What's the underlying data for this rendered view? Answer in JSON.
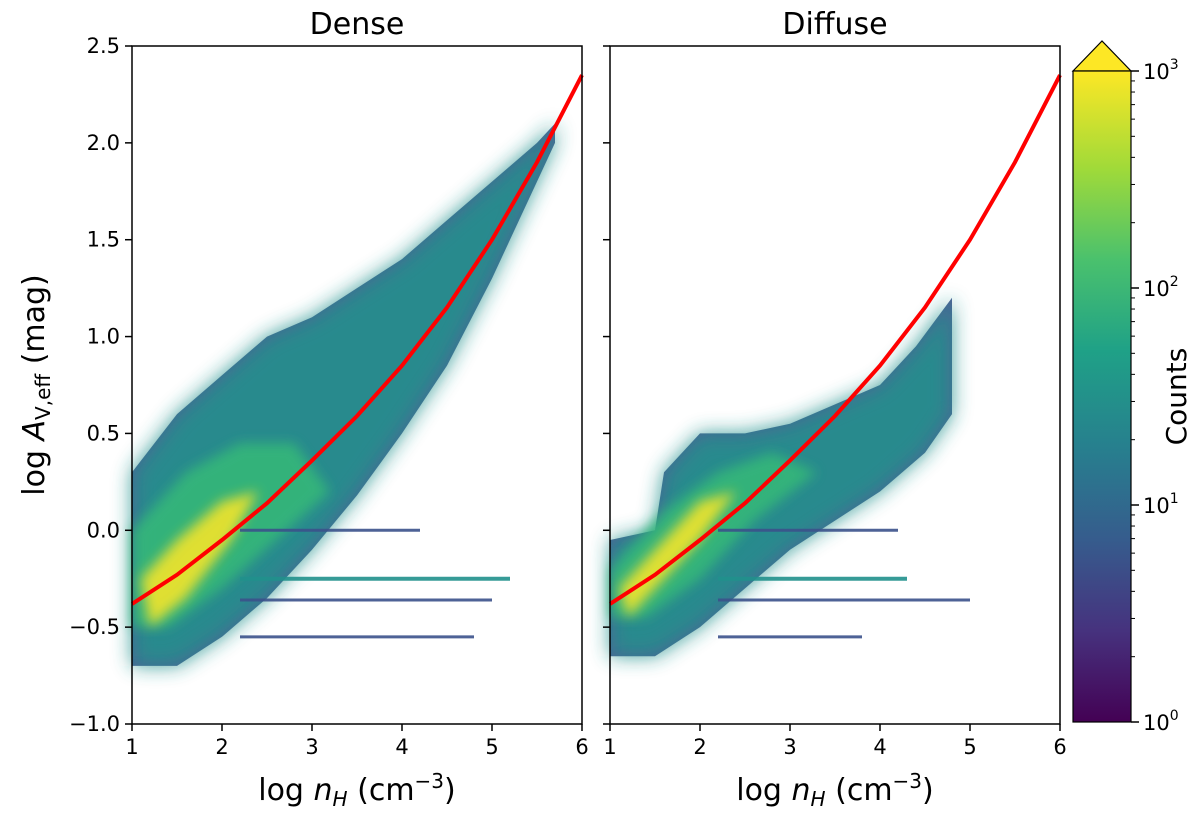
{
  "chart_data": {
    "type": "heatmap",
    "shared": {
      "xlabel_prefix": "log",
      "xlabel_var": "n",
      "xlabel_sub": "H",
      "xlabel_unit_open": " (cm",
      "xlabel_unit_exp": "−3",
      "xlabel_unit_close": ")",
      "ylabel_prefix": "log",
      "ylabel_var": "A",
      "ylabel_sub": "V,eff",
      "ylabel_unit": " (mag)",
      "xlim": [
        1,
        6
      ],
      "ylim": [
        -1.0,
        2.5
      ],
      "xticks": [
        1,
        2,
        3,
        4,
        5,
        6
      ],
      "xtick_labels": [
        "1",
        "2",
        "3",
        "4",
        "5",
        "6"
      ],
      "yticks": [
        -1.0,
        -0.5,
        0.0,
        0.5,
        1.0,
        1.5,
        2.0,
        2.5
      ],
      "ytick_labels": [
        "−1.0",
        "−0.5",
        "0.0",
        "0.5",
        "1.0",
        "1.5",
        "2.0",
        "2.5"
      ],
      "fit_curve": {
        "color": "#ff0000",
        "x": [
          1.0,
          1.5,
          2.0,
          2.5,
          3.0,
          3.5,
          4.0,
          4.5,
          5.0,
          5.5,
          6.0
        ],
        "y": [
          -0.38,
          -0.23,
          -0.05,
          0.14,
          0.36,
          0.59,
          0.85,
          1.15,
          1.5,
          1.9,
          2.35
        ]
      }
    },
    "panels": [
      {
        "title": "Dense",
        "upper_x": [
          1.0,
          1.5,
          2.0,
          2.5,
          3.0,
          3.5,
          4.0,
          4.5,
          5.0,
          5.5,
          5.7
        ],
        "upper_y": [
          0.3,
          0.6,
          0.8,
          1.0,
          1.1,
          1.25,
          1.4,
          1.6,
          1.8,
          2.0,
          2.1
        ],
        "lower_x": [
          5.7,
          5.5,
          5.0,
          4.5,
          4.0,
          3.5,
          3.0,
          2.5,
          2.0,
          1.5,
          1.0
        ],
        "lower_y": [
          2.0,
          1.8,
          1.3,
          0.85,
          0.5,
          0.18,
          -0.1,
          -0.35,
          -0.55,
          -0.7,
          -0.7
        ],
        "core_x": [
          1.0,
          1.6,
          2.2,
          2.8,
          3.2,
          2.6,
          2.0,
          1.4,
          1.0
        ],
        "core_y": [
          0.0,
          0.3,
          0.45,
          0.45,
          0.2,
          -0.05,
          -0.3,
          -0.5,
          -0.5
        ],
        "hot_x": [
          1.1,
          1.5,
          2.0,
          2.4,
          2.1,
          1.6,
          1.2
        ],
        "hot_y": [
          -0.25,
          -0.05,
          0.15,
          0.2,
          -0.05,
          -0.35,
          -0.5
        ],
        "streak_x_end": [
          4.2,
          5.2,
          5.0,
          4.8
        ],
        "streak_y": [
          0.0,
          -0.25,
          -0.36,
          -0.55
        ]
      },
      {
        "title": "Diffuse",
        "upper_x": [
          1.0,
          1.5,
          1.6,
          2.0,
          2.5,
          3.0,
          3.5,
          4.0,
          4.4,
          4.8
        ],
        "upper_y": [
          -0.05,
          0.0,
          0.3,
          0.5,
          0.5,
          0.55,
          0.65,
          0.75,
          0.95,
          1.2
        ],
        "lower_x": [
          4.8,
          4.5,
          4.0,
          3.5,
          3.0,
          2.5,
          2.0,
          1.5,
          1.0
        ],
        "lower_y": [
          0.6,
          0.4,
          0.2,
          0.05,
          -0.1,
          -0.3,
          -0.5,
          -0.65,
          -0.65
        ],
        "core_x": [
          1.0,
          1.6,
          2.2,
          2.8,
          3.3,
          2.6,
          2.0,
          1.4,
          1.0
        ],
        "core_y": [
          -0.2,
          0.1,
          0.3,
          0.4,
          0.3,
          0.05,
          -0.25,
          -0.45,
          -0.45
        ],
        "hot_x": [
          1.1,
          1.6,
          2.0,
          2.4,
          2.0,
          1.5,
          1.2
        ],
        "hot_y": [
          -0.3,
          -0.05,
          0.15,
          0.2,
          -0.05,
          -0.3,
          -0.45
        ],
        "streak_x_end": [
          4.2,
          4.3,
          5.0,
          3.8
        ],
        "streak_y": [
          0.0,
          -0.25,
          -0.36,
          -0.55
        ]
      }
    ],
    "colorbar": {
      "label": "Counts",
      "colormap": "viridis",
      "scale": "log",
      "extend": "max",
      "min": 1,
      "max": 1000,
      "tick_base": "10",
      "tick_exps": [
        "0",
        "1",
        "2",
        "3"
      ]
    }
  }
}
